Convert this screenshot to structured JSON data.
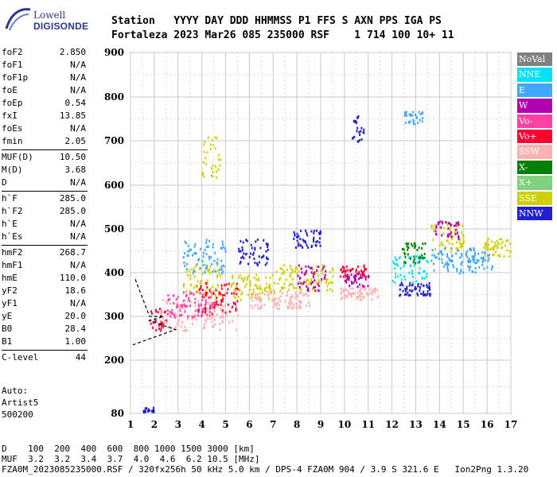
{
  "logo": {
    "line1": "Lowell",
    "line2": "DIGISONDE"
  },
  "header": {
    "labels": [
      "Station",
      "YYYY",
      "DAY",
      "DDD",
      "HHMMSS",
      "P1",
      "FFS",
      "S",
      "AXN",
      "PPS",
      "IGA",
      "PS"
    ],
    "values": [
      "Fortaleza",
      "2023",
      "Mar26",
      "085",
      "235000",
      "RSF",
      "1",
      "714",
      "100",
      "10+",
      "11"
    ]
  },
  "params": [
    [
      {
        "label": "foF2",
        "value": "2.850"
      },
      {
        "label": "foF1",
        "value": "N/A"
      },
      {
        "label": "foF1p",
        "value": "N/A"
      },
      {
        "label": "foE",
        "value": "N/A"
      },
      {
        "label": "foEp",
        "value": "0.54"
      },
      {
        "label": "fxI",
        "value": "13.85"
      },
      {
        "label": "foEs",
        "value": "N/A"
      },
      {
        "label": "fmin",
        "value": "2.05"
      }
    ],
    [
      {
        "label": "MUF(D)",
        "value": "10.50"
      },
      {
        "label": "M(D)",
        "value": "3.68"
      },
      {
        "label": "D",
        "value": "N/A"
      }
    ],
    [
      {
        "label": "h`F",
        "value": "285.0"
      },
      {
        "label": "h`F2",
        "value": "285.0"
      },
      {
        "label": "h`E",
        "value": "N/A"
      },
      {
        "label": "h`Es",
        "value": "N/A"
      }
    ],
    [
      {
        "label": "hmF2",
        "value": "268.7"
      },
      {
        "label": "hmF1",
        "value": "N/A"
      },
      {
        "label": "hmE",
        "value": "110.0"
      },
      {
        "label": "yF2",
        "value": "18.6"
      },
      {
        "label": "yF1",
        "value": "N/A"
      },
      {
        "label": "yE",
        "value": "20.0"
      },
      {
        "label": "B0",
        "value": "28.4"
      },
      {
        "label": "B1",
        "value": "1.00"
      }
    ],
    [
      {
        "label": "C-level",
        "value": "44"
      }
    ]
  ],
  "auto": {
    "line1": "Auto:",
    "line2": "Artist5",
    "line3": "500200"
  },
  "legend": [
    {
      "label": "NoVal",
      "color": "#808080"
    },
    {
      "label": "NNE",
      "color": "#00e0ff"
    },
    {
      "label": "E",
      "color": "#40a8ff"
    },
    {
      "label": "W",
      "color": "#b000b0"
    },
    {
      "label": "Vo-",
      "color": "#ff40a0"
    },
    {
      "label": "Vo+",
      "color": "#ff0030"
    },
    {
      "label": "SSW",
      "color": "#ffb0b0"
    },
    {
      "label": "X-",
      "color": "#008000"
    },
    {
      "label": "X+",
      "color": "#80d080"
    },
    {
      "label": "SSE",
      "color": "#d0d000"
    },
    {
      "label": "NNW",
      "color": "#2020d0"
    }
  ],
  "footer": {
    "line1": "D    100  200  400  600  800 1000 1500 3000 [km]",
    "line2": "MUF  3.2  3.2  3.4  3.7  4.0  4.6  6.2 10.5 [MHz]",
    "line3": "FZA0M_2023085235000.RSF / 320fx256h 50 kHz 5.0 km / DPS-4 FZA0M 904 / 3.9 S 321.6 E   Ion2Png 1.3.20"
  },
  "chart_data": {
    "type": "scatter",
    "title": "",
    "xlabel": "",
    "ylabel": "",
    "xlim": [
      1,
      17
    ],
    "ylim": [
      80,
      900
    ],
    "x_ticks": [
      1,
      2,
      3,
      4,
      5,
      6,
      7,
      8,
      9,
      10,
      11,
      12,
      13,
      14,
      15,
      16,
      17
    ],
    "y_ticks": [
      80,
      200,
      300,
      400,
      500,
      600,
      700,
      800,
      900
    ],
    "grid": true,
    "clusters": [
      {
        "series": "Vo+",
        "x": [
          1.7,
          2.5
        ],
        "y": [
          270,
          320
        ]
      },
      {
        "series": "SSW",
        "x": [
          2.2,
          5.5
        ],
        "y": [
          270,
          340
        ]
      },
      {
        "series": "Vo-",
        "x": [
          2.5,
          4.5
        ],
        "y": [
          300,
          360
        ]
      },
      {
        "series": "SSE",
        "x": [
          3.2,
          4.8
        ],
        "y": [
          350,
          420
        ]
      },
      {
        "series": "E",
        "x": [
          3.2,
          5.0
        ],
        "y": [
          400,
          480
        ]
      },
      {
        "series": "SSE",
        "x": [
          4.0,
          4.8
        ],
        "y": [
          620,
          720
        ]
      },
      {
        "series": "Vo+",
        "x": [
          3.8,
          5.5
        ],
        "y": [
          310,
          380
        ]
      },
      {
        "series": "SSE",
        "x": [
          5.2,
          7.0
        ],
        "y": [
          340,
          400
        ]
      },
      {
        "series": "NNW",
        "x": [
          5.5,
          6.8
        ],
        "y": [
          420,
          480
        ]
      },
      {
        "series": "SSW",
        "x": [
          6.0,
          8.5
        ],
        "y": [
          320,
          360
        ]
      },
      {
        "series": "SSE",
        "x": [
          7.0,
          9.5
        ],
        "y": [
          360,
          420
        ]
      },
      {
        "series": "NNW",
        "x": [
          7.8,
          9.0
        ],
        "y": [
          460,
          500
        ]
      },
      {
        "series": "W",
        "x": [
          8.0,
          9.2
        ],
        "y": [
          360,
          420
        ]
      },
      {
        "series": "SSW",
        "x": [
          9.8,
          11.4
        ],
        "y": [
          340,
          370
        ]
      },
      {
        "series": "Vo+",
        "x": [
          9.8,
          11.0
        ],
        "y": [
          390,
          420
        ]
      },
      {
        "series": "W",
        "x": [
          10.0,
          11.0
        ],
        "y": [
          370,
          400
        ]
      },
      {
        "series": "NNE",
        "x": [
          12.0,
          13.5
        ],
        "y": [
          380,
          440
        ]
      },
      {
        "series": "NNW",
        "x": [
          12.2,
          13.6
        ],
        "y": [
          350,
          380
        ]
      },
      {
        "series": "X-",
        "x": [
          12.4,
          13.4
        ],
        "y": [
          420,
          470
        ]
      },
      {
        "series": "SSE",
        "x": [
          13.6,
          15.0
        ],
        "y": [
          450,
          520
        ]
      },
      {
        "series": "E",
        "x": [
          13.6,
          15.5
        ],
        "y": [
          400,
          460
        ]
      },
      {
        "series": "W",
        "x": [
          13.8,
          14.8
        ],
        "y": [
          480,
          520
        ]
      },
      {
        "series": "E",
        "x": [
          15.2,
          16.2
        ],
        "y": [
          410,
          450
        ]
      },
      {
        "series": "SSE",
        "x": [
          15.8,
          17.0
        ],
        "y": [
          440,
          480
        ]
      },
      {
        "series": "NNW",
        "x": [
          10.2,
          10.8
        ],
        "y": [
          700,
          760
        ]
      },
      {
        "series": "E",
        "x": [
          12.5,
          13.3
        ],
        "y": [
          740,
          770
        ]
      },
      {
        "series": "NNW",
        "x": [
          1.5,
          2.0
        ],
        "y": [
          85,
          95
        ]
      }
    ]
  }
}
